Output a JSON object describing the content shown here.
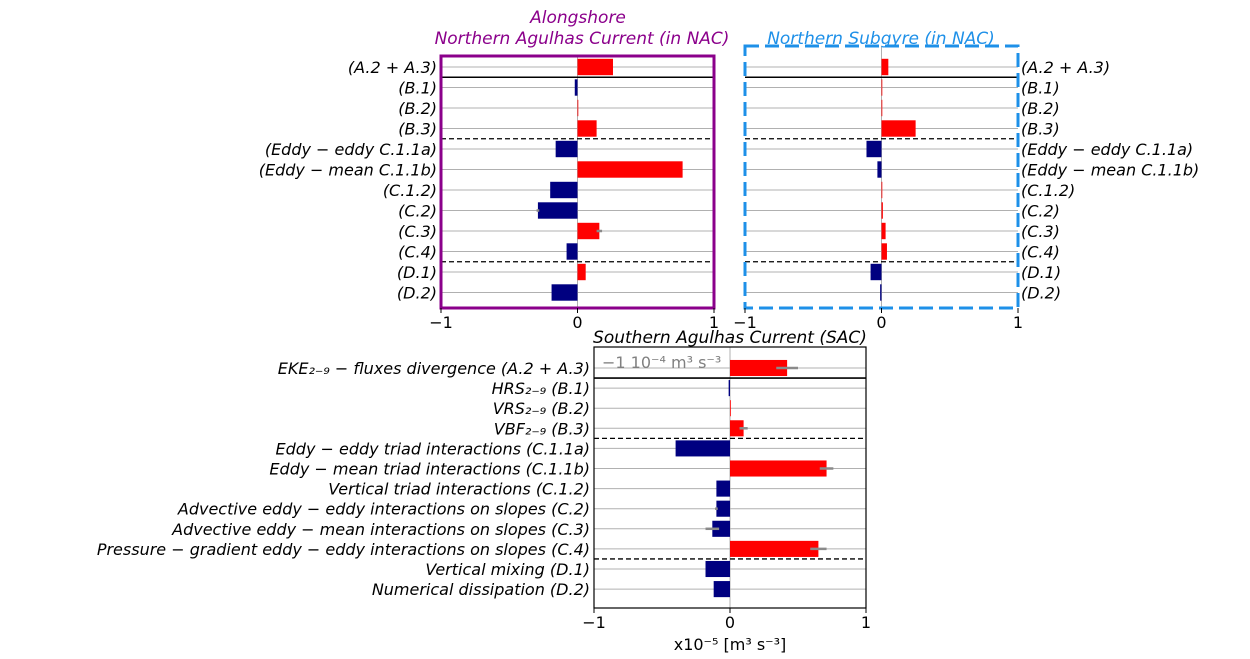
{
  "chart_data": [
    {
      "type": "bar",
      "orientation": "horizontal",
      "title": "Alongshore\nNorthern Agulhas Current (in NAC)",
      "title_color": "#8B008B",
      "frame_color": "#8B008B",
      "frame_style": "solid",
      "xlim": [
        -1,
        1
      ],
      "xticks": [
        "−1",
        "0",
        "1"
      ],
      "tick_side": "left",
      "categories": [
        "(A.2 + A.3)",
        "(B.1)",
        "(B.2)",
        "(B.3)",
        "(Eddy − eddy C.1.1a)",
        "(Eddy − mean C.1.1b)",
        "(C.1.2)",
        "(C.2)",
        "(C.3)",
        "(C.4)",
        "(D.1)",
        "(D.2)"
      ],
      "values": [
        0.26,
        -0.02,
        0.0,
        0.14,
        -0.16,
        0.77,
        -0.2,
        -0.29,
        0.16,
        -0.08,
        0.06,
        -0.19
      ],
      "errors": [
        0.0,
        0.0,
        0.0,
        0.0,
        0.0,
        0.0,
        0.0,
        0.01,
        0.02,
        0.0,
        0.0,
        0.0
      ],
      "separators": [
        {
          "after": 0,
          "style": "solid"
        },
        {
          "after": 3,
          "style": "dashed"
        },
        {
          "after": 9,
          "style": "dashed"
        }
      ],
      "positive_color": "#FF0000",
      "negative_color": "#000080",
      "grid": true
    },
    {
      "type": "bar",
      "orientation": "horizontal",
      "title": "Northern Subgyre (in NAC)",
      "title_color": "#1E90E8",
      "frame_color": "#1E90E8",
      "frame_style": "dashed",
      "xlim": [
        -1,
        1
      ],
      "xticks": [
        "−1",
        "0",
        "1"
      ],
      "tick_side": "right",
      "categories": [
        "(A.2 + A.3)",
        "(B.1)",
        "(B.2)",
        "(B.3)",
        "(Eddy − eddy C.1.1a)",
        "(Eddy − mean C.1.1b)",
        "(C.1.2)",
        "(C.2)",
        "(C.3)",
        "(C.4)",
        "(D.1)",
        "(D.2)"
      ],
      "values": [
        0.05,
        0.0,
        0.0,
        0.25,
        -0.11,
        -0.03,
        0.0,
        0.01,
        0.03,
        0.04,
        -0.08,
        -0.01
      ],
      "errors": [
        0.0,
        0.0,
        0.0,
        0.0,
        0.0,
        0.0,
        0.0,
        0.0,
        0.0,
        0.0,
        0.0,
        0.0
      ],
      "separators": [
        {
          "after": 0,
          "style": "solid"
        },
        {
          "after": 3,
          "style": "dashed"
        },
        {
          "after": 9,
          "style": "dashed"
        }
      ],
      "positive_color": "#FF0000",
      "negative_color": "#000080",
      "grid": true
    },
    {
      "type": "bar",
      "orientation": "horizontal",
      "title": "Southern Agulhas Current (SAC)",
      "title_color": "#000000",
      "frame_color": "#000000",
      "frame_style": "solid",
      "xlim": [
        -1,
        1
      ],
      "xticks": [
        "−1",
        "0",
        "1"
      ],
      "xlabel": "x10⁻⁵ [m³ s⁻³]",
      "annotation": "−1 10⁻⁴ m³ s⁻³",
      "tick_side": "left",
      "categories": [
        "EKE₂₋₉ − fluxes divergence (A.2 + A.3)",
        "HRS₂₋₉ (B.1)",
        "VRS₂₋₉ (B.2)",
        "VBF₂₋₉ (B.3)",
        "Eddy − eddy triad interactions (C.1.1a)",
        "Eddy − mean triad interactions (C.1.1b)",
        "Vertical triad interactions (C.1.2)",
        "Advective eddy − eddy interactions on slopes (C.2)",
        "Advective eddy − mean interactions on slopes (C.3)",
        "Pressure − gradient eddy − eddy interactions on slopes (C.4)",
        "Vertical mixing (D.1)",
        "Numerical dissipation (D.2)"
      ],
      "values": [
        0.42,
        -0.01,
        0.0,
        0.1,
        -0.4,
        0.71,
        -0.1,
        -0.1,
        -0.13,
        0.65,
        -0.18,
        -0.12
      ],
      "errors": [
        0.08,
        0.0,
        0.0,
        0.03,
        0.0,
        0.05,
        0.0,
        0.01,
        0.05,
        0.06,
        0.0,
        0.0
      ],
      "separators": [
        {
          "after": 0,
          "style": "solid"
        },
        {
          "after": 3,
          "style": "dashed"
        },
        {
          "after": 9,
          "style": "dashed"
        }
      ],
      "positive_color": "#FF0000",
      "negative_color": "#000080",
      "grid": true
    }
  ]
}
